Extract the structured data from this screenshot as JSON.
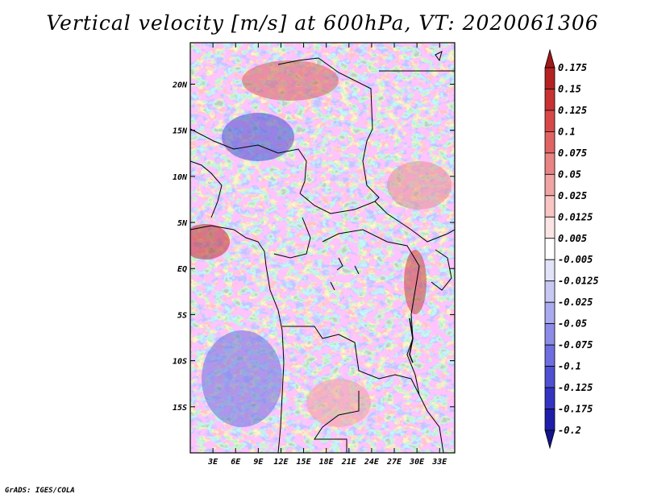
{
  "title": "Vertical velocity [m/s] at 600hPa, VT: 2020061306",
  "credit": "GrADS: IGES/COLA",
  "map": {
    "lon_range": [
      0,
      35
    ],
    "lat_range": [
      -20,
      24.5
    ],
    "lon_ticks": [
      "3E",
      "6E",
      "9E",
      "12E",
      "15E",
      "18E",
      "21E",
      "24E",
      "27E",
      "30E",
      "33E"
    ],
    "lat_ticks": [
      "20N",
      "15N",
      "10N",
      "5N",
      "EQ",
      "5S",
      "10S",
      "15S"
    ],
    "field": "vertical velocity",
    "units": "m/s",
    "level": "600hPa",
    "valid_time": "2020061306"
  },
  "colorbar": {
    "labels": [
      "0.175",
      "0.15",
      "0.125",
      "0.1",
      "0.075",
      "0.05",
      "0.025",
      "0.0125",
      "0.005",
      "-0.005",
      "-0.0125",
      "-0.025",
      "-0.05",
      "-0.075",
      "-0.1",
      "-0.125",
      "-0.175",
      "-0.2"
    ],
    "colors": [
      "#a01818",
      "#b42222",
      "#c83232",
      "#d84848",
      "#e06464",
      "#e88484",
      "#f0a4a4",
      "#f8c4c4",
      "#fbe4e4",
      "#ffffff",
      "#e2e2f8",
      "#c8c8f4",
      "#aaaaf0",
      "#8c8ce8",
      "#6e6ee0",
      "#5050d2",
      "#3434c2",
      "#1e1eaa",
      "#14148c"
    ]
  }
}
